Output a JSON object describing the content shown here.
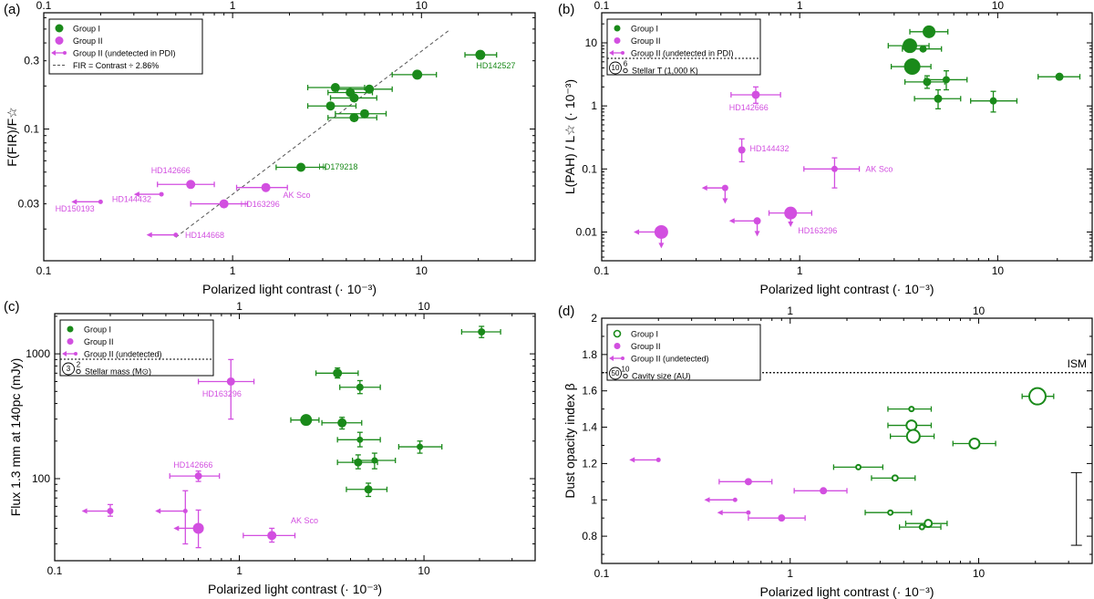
{
  "colors": {
    "group1": "#1a8a1a",
    "group2": "#d24fe0",
    "axis": "#000000"
  },
  "chart_data": [
    {
      "type": "scatter",
      "panel_label": "(a)",
      "xlabel": "Polarized light contrast (· 10⁻³)",
      "ylabel": "F(FIR)/F☆",
      "xscale": "log",
      "yscale": "log",
      "xlim": [
        0.1,
        40
      ],
      "ylim": [
        0.012,
        0.65
      ],
      "xticks": [
        0.1,
        1,
        10
      ],
      "xtick_labels": [
        "0.1",
        "1",
        "10"
      ],
      "yticks": [
        0.03,
        0.1,
        0.3
      ],
      "ytick_labels": [
        "0.03",
        "0.1",
        "0.3"
      ],
      "top_xticks": [
        0.1,
        1,
        10
      ],
      "top_xtick_labels": [
        "0.1",
        "1",
        "10"
      ],
      "line": {
        "label": "FIR = Contrast ÷ 2.86%",
        "x": [
          0.5,
          14
        ],
        "y": [
          0.0175,
          0.49
        ]
      },
      "legend": [
        {
          "label": "Group I",
          "kind": "g1"
        },
        {
          "label": "Group II",
          "kind": "g2"
        },
        {
          "label": "Group II (undetected in PDI)",
          "kind": "g2-arrow"
        },
        {
          "label": "FIR = Contrast ÷ 2.86%",
          "kind": "dash"
        }
      ],
      "points": [
        {
          "x": 20.5,
          "y": 0.33,
          "g": 1,
          "s": 5.5,
          "xl": 17,
          "xh": 25
        },
        {
          "x": 9.5,
          "y": 0.24,
          "g": 1,
          "s": 5.5,
          "xl": 7,
          "xh": 12
        },
        {
          "x": 3.5,
          "y": 0.195,
          "g": 1,
          "s": 5,
          "xl": 2.5,
          "xh": 5
        },
        {
          "x": 5.3,
          "y": 0.19,
          "g": 1,
          "s": 5,
          "xl": 3.6,
          "xh": 7
        },
        {
          "x": 4.2,
          "y": 0.18,
          "g": 1,
          "s": 5,
          "xl": 3.2,
          "xh": 5.5
        },
        {
          "x": 4.4,
          "y": 0.165,
          "g": 1,
          "s": 5,
          "xl": 3.3,
          "xh": 5.8
        },
        {
          "x": 3.3,
          "y": 0.145,
          "g": 1,
          "s": 5,
          "xl": 2.5,
          "xh": 4.5
        },
        {
          "x": 5.0,
          "y": 0.128,
          "g": 1,
          "s": 5,
          "xl": 3.5,
          "xh": 6.5
        },
        {
          "x": 4.4,
          "y": 0.12,
          "g": 1,
          "s": 5,
          "xl": 3.2,
          "xh": 5.8
        },
        {
          "x": 2.3,
          "y": 0.054,
          "g": 1,
          "s": 5,
          "xl": 1.7,
          "xh": 3.1
        },
        {
          "x": 0.6,
          "y": 0.041,
          "g": 2,
          "s": 5,
          "xl": 0.4,
          "xh": 0.8
        },
        {
          "x": 1.5,
          "y": 0.039,
          "g": 2,
          "s": 5,
          "xl": 1.05,
          "xh": 1.95
        },
        {
          "x": 0.9,
          "y": 0.03,
          "g": 2,
          "s": 5,
          "xl": 0.6,
          "xh": 1.2
        },
        {
          "x": 0.2,
          "y": 0.031,
          "g": 2,
          "s": 2.5,
          "arrowL": 0.14
        },
        {
          "x": 0.42,
          "y": 0.035,
          "g": 2,
          "s": 2.5,
          "arrowL": 0.3
        },
        {
          "x": 0.5,
          "y": 0.0182,
          "g": 2,
          "s": 2.5,
          "arrowL": 0.35
        }
      ],
      "labels": [
        {
          "text": "HD142527",
          "x": 19.5,
          "y": 0.265,
          "g": 1
        },
        {
          "text": "HD179218",
          "x": 2.85,
          "y": 0.052,
          "g": 1
        },
        {
          "text": "HD142666",
          "x": 0.37,
          "y": 0.049,
          "g": 2
        },
        {
          "text": "AK Sco",
          "x": 1.85,
          "y": 0.033,
          "g": 2
        },
        {
          "text": "HD144432",
          "x": 0.23,
          "y": 0.031,
          "g": 2
        },
        {
          "text": "HD150193",
          "x": 0.115,
          "y": 0.0265,
          "g": 2
        },
        {
          "text": "HD163296",
          "x": 1.1,
          "y": 0.0285,
          "g": 2
        },
        {
          "text": "HD144668",
          "x": 0.56,
          "y": 0.0173,
          "g": 2
        }
      ]
    },
    {
      "type": "scatter",
      "panel_label": "(b)",
      "xlabel": "Polarized light contrast (· 10⁻³)",
      "ylabel": "L(PAH) / L☆ (· 10⁻³)",
      "xscale": "log",
      "yscale": "log",
      "xlim": [
        0.1,
        30
      ],
      "ylim": [
        0.0035,
        30
      ],
      "xticks": [
        0.1,
        1,
        10
      ],
      "xtick_labels": [
        "0.1",
        "1",
        "10"
      ],
      "yticks": [
        0.01,
        0.1,
        1,
        10
      ],
      "ytick_labels": [
        "0.01",
        "0.1",
        "1",
        "10"
      ],
      "top_xticks": [
        0.1,
        1,
        10
      ],
      "top_xtick_labels": [
        "0.1",
        "1",
        "10"
      ],
      "legend": [
        {
          "label": "Group I",
          "kind": "g1"
        },
        {
          "label": "Group II",
          "kind": "g2"
        },
        {
          "label": "Group II (undetected in PDI)",
          "kind": "g2-arrow"
        },
        {
          "label": "Stellar T (1,000 K)",
          "kind": "size",
          "big": "10",
          "small": "6"
        }
      ],
      "points": [
        {
          "x": 4.5,
          "y": 15,
          "g": 1,
          "s": 7,
          "xl": 3.6,
          "xh": 5.6
        },
        {
          "x": 3.6,
          "y": 9,
          "g": 1,
          "s": 8,
          "xl": 2.8,
          "xh": 4.5
        },
        {
          "x": 4.2,
          "y": 8,
          "g": 1,
          "s": 4,
          "xl": 3.3,
          "xh": 5.2
        },
        {
          "x": 3.7,
          "y": 4.2,
          "g": 1,
          "s": 9,
          "xl": 2.9,
          "xh": 4.6
        },
        {
          "x": 4.4,
          "y": 2.4,
          "g": 1,
          "s": 4.5,
          "xl": 3.4,
          "xh": 5.4,
          "yl": 1.9,
          "yh": 3.0
        },
        {
          "x": 5.5,
          "y": 2.6,
          "g": 1,
          "s": 4,
          "xl": 4.3,
          "xh": 7.0,
          "yl": 1.8,
          "yh": 3.6
        },
        {
          "x": 20.5,
          "y": 2.9,
          "g": 1,
          "s": 4.5,
          "xl": 16,
          "xh": 26
        },
        {
          "x": 5.0,
          "y": 1.3,
          "g": 1,
          "s": 4.5,
          "xl": 3.8,
          "xh": 6.5,
          "yl": 0.9,
          "yh": 1.8
        },
        {
          "x": 9.5,
          "y": 1.2,
          "g": 1,
          "s": 4,
          "xl": 7.3,
          "xh": 12.5,
          "yl": 0.8,
          "yh": 1.7
        },
        {
          "x": 0.6,
          "y": 1.5,
          "g": 2,
          "s": 4.5,
          "xl": 0.45,
          "xh": 0.8,
          "yl": 1.1,
          "yh": 2.0
        },
        {
          "x": 0.51,
          "y": 0.2,
          "g": 2,
          "s": 4,
          "yl": 0.13,
          "yh": 0.3
        },
        {
          "x": 1.5,
          "y": 0.1,
          "g": 2,
          "s": 3.5,
          "xl": 1.05,
          "xh": 2.0,
          "yl": 0.05,
          "yh": 0.15
        },
        {
          "x": 0.42,
          "y": 0.05,
          "g": 2,
          "s": 3.5,
          "arrowL": 0.32,
          "arrowD": 0.028
        },
        {
          "x": 0.61,
          "y": 0.015,
          "g": 2,
          "s": 4,
          "arrowL": 0.44,
          "arrowD": 0.0085
        },
        {
          "x": 0.9,
          "y": 0.02,
          "g": 2,
          "s": 7,
          "xl": 0.7,
          "xh": 1.15,
          "arrowD": 0.012
        },
        {
          "x": 0.2,
          "y": 0.01,
          "g": 2,
          "s": 7.5,
          "arrowL": 0.145,
          "arrowD": 0.0055
        }
      ],
      "labels": [
        {
          "text": "HD142666",
          "x": 0.44,
          "y": 0.85,
          "g": 2
        },
        {
          "text": "HD144432",
          "x": 0.56,
          "y": 0.19,
          "g": 2
        },
        {
          "text": "AK Sco",
          "x": 2.15,
          "y": 0.09,
          "g": 2
        },
        {
          "text": "HD163296",
          "x": 0.98,
          "y": 0.0095,
          "g": 2
        }
      ]
    },
    {
      "type": "scatter",
      "panel_label": "(c)",
      "xlabel": "Polarized light contrast (· 10⁻³)",
      "ylabel": "Flux 1.3 mm at 140pc (mJy)",
      "xscale": "log",
      "yscale": "log",
      "xlim": [
        0.1,
        40
      ],
      "ylim": [
        22,
        2100
      ],
      "xticks": [
        0.1,
        1,
        10
      ],
      "xtick_labels": [
        "0.1",
        "1",
        "10"
      ],
      "yticks": [
        100,
        1000
      ],
      "ytick_labels": [
        "100",
        "1000"
      ],
      "top_xticks": [
        1,
        10
      ],
      "top_xtick_labels": [
        "1",
        "10"
      ],
      "legend": [
        {
          "label": "Group I",
          "kind": "g1"
        },
        {
          "label": "Group II",
          "kind": "g2"
        },
        {
          "label": "Group II (undetected)",
          "kind": "g2-arrow"
        },
        {
          "label": "Stellar mass (M⊙)",
          "kind": "size",
          "big": "3",
          "small": "2"
        }
      ],
      "points": [
        {
          "x": 20.5,
          "y": 1500,
          "g": 1,
          "s": 4,
          "xl": 16,
          "xh": 26,
          "yl": 1350,
          "yh": 1660
        },
        {
          "x": 3.4,
          "y": 700,
          "g": 1,
          "s": 5,
          "xl": 2.6,
          "xh": 4.4,
          "yl": 640,
          "yh": 770
        },
        {
          "x": 4.5,
          "y": 540,
          "g": 1,
          "s": 4,
          "xl": 3.5,
          "xh": 5.8,
          "yl": 480,
          "yh": 610
        },
        {
          "x": 2.3,
          "y": 295,
          "g": 1,
          "s": 6.5,
          "xl": 1.9,
          "xh": 2.7,
          "yl": 270,
          "yh": 320
        },
        {
          "x": 3.6,
          "y": 280,
          "g": 1,
          "s": 5,
          "xl": 2.8,
          "xh": 4.6,
          "yl": 250,
          "yh": 310
        },
        {
          "x": 4.5,
          "y": 205,
          "g": 1,
          "s": 3.5,
          "xl": 3.4,
          "xh": 5.8,
          "yl": 180,
          "yh": 235
        },
        {
          "x": 9.5,
          "y": 180,
          "g": 1,
          "s": 3.5,
          "xl": 7.3,
          "xh": 12.5,
          "yl": 160,
          "yh": 200
        },
        {
          "x": 4.4,
          "y": 135,
          "g": 1,
          "s": 4.5,
          "xl": 3.4,
          "xh": 5.6,
          "yl": 120,
          "yh": 155
        },
        {
          "x": 5.4,
          "y": 140,
          "g": 1,
          "s": 3.5,
          "xl": 4.1,
          "xh": 7.0,
          "yl": 120,
          "yh": 160
        },
        {
          "x": 5.0,
          "y": 82,
          "g": 1,
          "s": 4.5,
          "xl": 3.8,
          "xh": 6.3,
          "yl": 72,
          "yh": 92
        },
        {
          "x": 0.9,
          "y": 600,
          "g": 2,
          "s": 4.5,
          "xl": 0.6,
          "xh": 1.2,
          "yl": 300,
          "yh": 900
        },
        {
          "x": 0.6,
          "y": 105,
          "g": 2,
          "s": 4,
          "xl": 0.42,
          "xh": 0.78,
          "yl": 95,
          "yh": 115
        },
        {
          "x": 1.5,
          "y": 35,
          "g": 2,
          "s": 5,
          "xl": 1.05,
          "xh": 2.0,
          "yl": 31,
          "yh": 40
        },
        {
          "x": 0.2,
          "y": 55,
          "g": 2,
          "s": 3.5,
          "yl": 50,
          "yh": 62,
          "arrowL": 0.14
        },
        {
          "x": 0.51,
          "y": 55,
          "g": 2,
          "s": 2.5,
          "yl": 30,
          "yh": 80,
          "arrowL": 0.35
        },
        {
          "x": 0.6,
          "y": 40,
          "g": 2,
          "s": 6,
          "yl": 28,
          "yh": 56,
          "arrowL": 0.44
        }
      ],
      "labels": [
        {
          "text": "HD163296",
          "x": 0.63,
          "y": 455,
          "g": 2
        },
        {
          "text": "HD142666",
          "x": 0.44,
          "y": 122,
          "g": 2
        },
        {
          "text": "AK Sco",
          "x": 1.9,
          "y": 44,
          "g": 2
        }
      ]
    },
    {
      "type": "scatter",
      "panel_label": "(d)",
      "xlabel": "Polarized light contrast (· 10⁻³)",
      "ylabel": "Dust opacity index β",
      "xscale": "log",
      "yscale": "linear",
      "xlim": [
        0.1,
        40
      ],
      "ylim": [
        0.65,
        2.0
      ],
      "xticks": [
        0.1,
        1,
        10
      ],
      "xtick_labels": [
        "0.1",
        "1",
        "10"
      ],
      "yticks": [
        0.8,
        1.0,
        1.2,
        1.4,
        1.6,
        1.8,
        2.0
      ],
      "ytick_labels": [
        "0.8",
        "1",
        "1.2",
        "1.4",
        "1.6",
        "1.8",
        "2"
      ],
      "top_xticks": [
        1,
        10
      ],
      "top_xtick_labels": [
        "1",
        "10"
      ],
      "hline": {
        "y": 1.7,
        "label": "ISM"
      },
      "typical_error": {
        "x": 33,
        "y_low": 0.75,
        "y_high": 1.15
      },
      "legend": [
        {
          "label": "Group I",
          "kind": "g1-open"
        },
        {
          "label": "Group II",
          "kind": "g2"
        },
        {
          "label": "Group II (undetected)",
          "kind": "g2-arrow"
        },
        {
          "label": "Cavity size (AU)",
          "kind": "size",
          "big": "50",
          "small": "10"
        }
      ],
      "points": [
        {
          "x": 20.5,
          "y": 1.57,
          "g": 1,
          "open": true,
          "s": 9,
          "xl": 17,
          "xh": 25
        },
        {
          "x": 4.4,
          "y": 1.5,
          "g": 1,
          "open": true,
          "s": 2.5,
          "xl": 3.3,
          "xh": 5.6
        },
        {
          "x": 4.4,
          "y": 1.41,
          "g": 1,
          "open": true,
          "s": 5.5,
          "xl": 3.3,
          "xh": 5.6
        },
        {
          "x": 4.5,
          "y": 1.35,
          "g": 1,
          "open": true,
          "s": 7,
          "xl": 3.4,
          "xh": 5.8
        },
        {
          "x": 9.5,
          "y": 1.31,
          "g": 1,
          "open": true,
          "s": 5.5,
          "xl": 7.3,
          "xh": 12.3
        },
        {
          "x": 2.3,
          "y": 1.18,
          "g": 1,
          "open": true,
          "s": 2.5,
          "xl": 1.7,
          "xh": 3.1
        },
        {
          "x": 3.6,
          "y": 1.12,
          "g": 1,
          "open": true,
          "s": 3,
          "xl": 2.7,
          "xh": 4.6
        },
        {
          "x": 3.4,
          "y": 0.93,
          "g": 1,
          "open": true,
          "s": 2.5,
          "xl": 2.5,
          "xh": 4.4
        },
        {
          "x": 5.4,
          "y": 0.87,
          "g": 1,
          "open": true,
          "s": 4,
          "xl": 4.1,
          "xh": 6.8
        },
        {
          "x": 5.0,
          "y": 0.85,
          "g": 1,
          "open": true,
          "s": 2.5,
          "xl": 3.8,
          "xh": 6.3
        },
        {
          "x": 0.6,
          "y": 1.1,
          "g": 2,
          "s": 4,
          "xl": 0.42,
          "xh": 0.8
        },
        {
          "x": 1.5,
          "y": 1.05,
          "g": 2,
          "s": 4,
          "xl": 1.05,
          "xh": 2.0
        },
        {
          "x": 0.9,
          "y": 0.9,
          "g": 2,
          "s": 4,
          "xl": 0.6,
          "xh": 1.2
        },
        {
          "x": 0.2,
          "y": 1.22,
          "g": 2,
          "s": 2.5,
          "arrowL": 0.14
        },
        {
          "x": 0.51,
          "y": 1.0,
          "g": 2,
          "s": 2.5,
          "arrowL": 0.35
        },
        {
          "x": 0.6,
          "y": 0.93,
          "g": 2,
          "s": 2.5,
          "arrowL": 0.41
        }
      ],
      "labels": []
    }
  ]
}
